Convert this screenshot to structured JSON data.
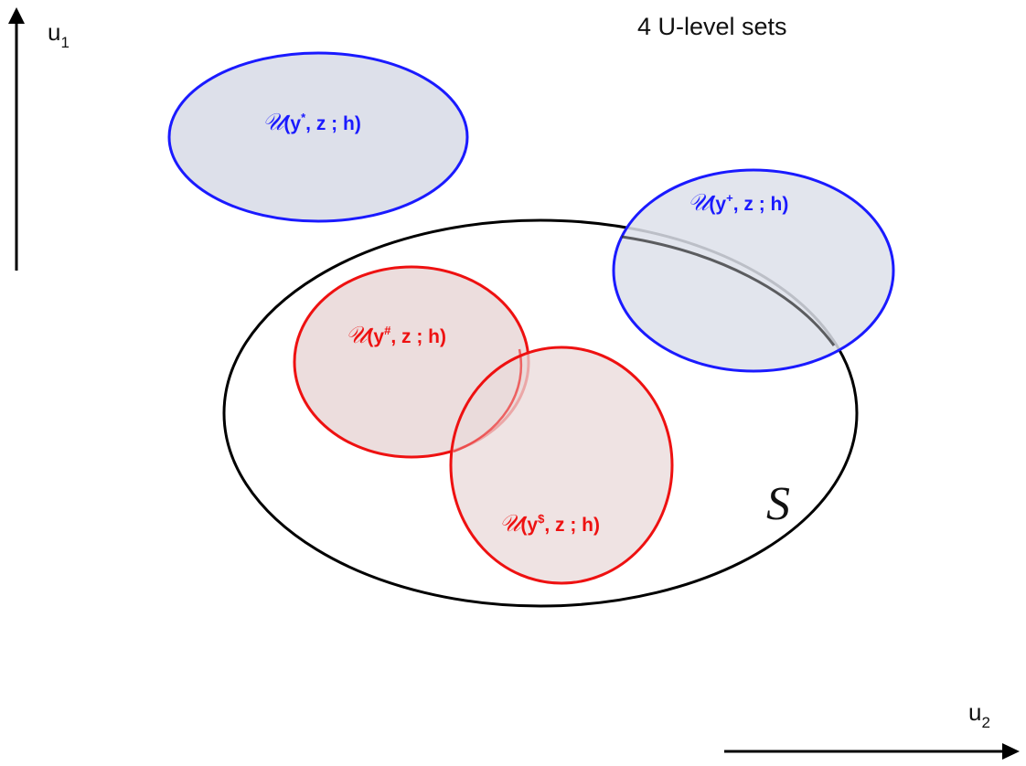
{
  "title": "4 U-level sets",
  "axes": {
    "vertical": {
      "label": "u",
      "subscript": "1"
    },
    "horizontal": {
      "label": "u",
      "subscript": "2"
    }
  },
  "region_label": "S",
  "level_sets": [
    {
      "script": "𝒰",
      "prefix": "(y",
      "superscript": "*",
      "suffix": ", z ; h)",
      "color": "#1a1aff",
      "fill": "#dde0ea"
    },
    {
      "script": "𝒰",
      "prefix": "(y",
      "superscript": "+",
      "suffix": ", z ; h)",
      "color": "#1a1aff",
      "fill": "#dde0ea"
    },
    {
      "script": "𝒰",
      "prefix": "(y",
      "superscript": "#",
      "suffix": ", z ; h)",
      "color": "#ee1111",
      "fill": "#ead9d9"
    },
    {
      "script": "𝒰",
      "prefix": "(y",
      "superscript": "$",
      "suffix": ", z ; h)",
      "color": "#ee1111",
      "fill": "#ead9d9"
    }
  ]
}
